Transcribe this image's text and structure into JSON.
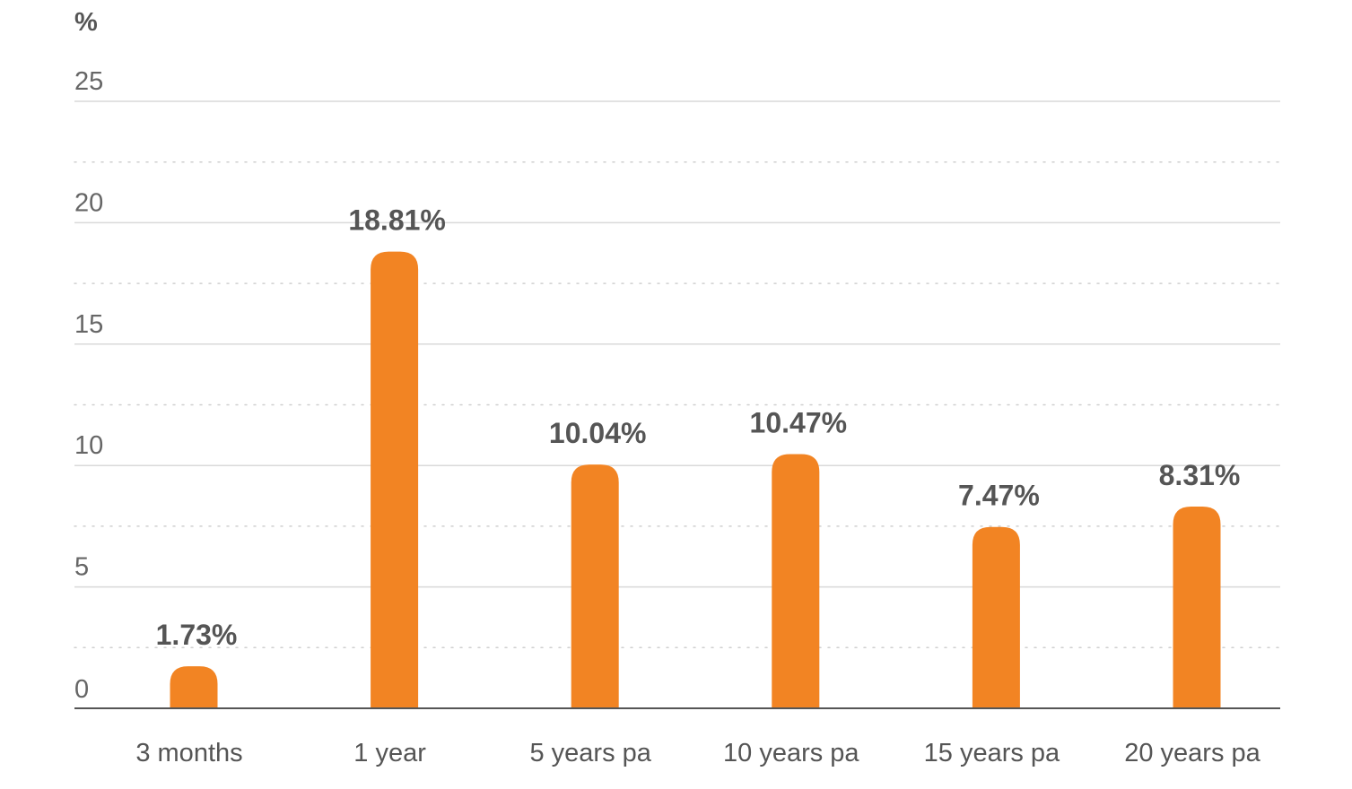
{
  "chart_data": {
    "type": "bar",
    "unit_label": "%",
    "categories": [
      "3 months",
      "1 year",
      "5 years pa",
      "10 years pa",
      "15 years pa",
      "20 years pa"
    ],
    "values": [
      1.73,
      18.81,
      10.04,
      10.47,
      7.47,
      8.31
    ],
    "value_labels": [
      "1.73%",
      "18.81%",
      "10.04%",
      "10.47%",
      "7.47%",
      "8.31%"
    ],
    "ylim": [
      0,
      25
    ],
    "yticks": [
      0,
      5,
      10,
      15,
      20,
      25
    ],
    "ytick_labels": [
      "0",
      "5",
      "10",
      "15",
      "20",
      "25"
    ],
    "minor_grid_dotted": true,
    "grid": true,
    "legend": "none",
    "colors": {
      "bar": "#f28423",
      "grid_major": "#d9d9d9",
      "grid_minor": "#cfcfcf",
      "baseline": "#555555",
      "text": "#555555"
    }
  }
}
